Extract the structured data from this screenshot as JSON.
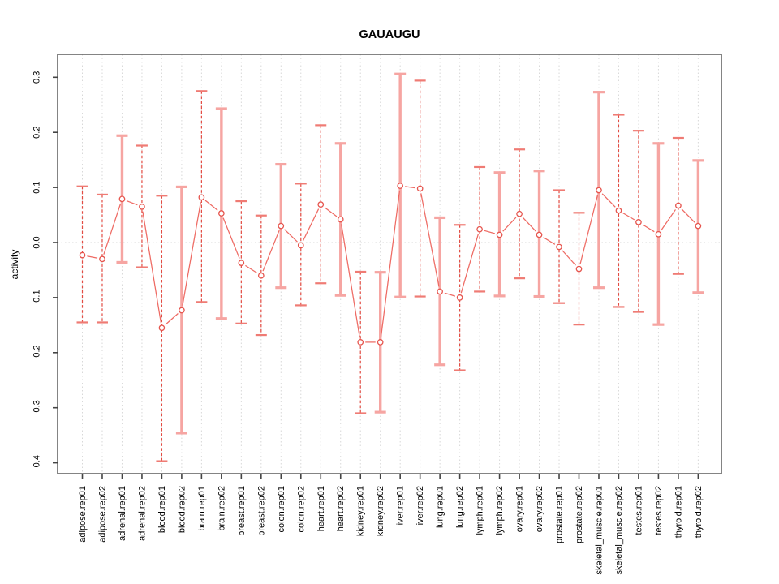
{
  "title": "GAUAUGU",
  "chart_data": {
    "type": "line",
    "title": "GAUAUGU",
    "xlabel": "",
    "ylabel": "activity",
    "ylim": [
      -0.42,
      0.34
    ],
    "ytick_values": [
      0.3,
      0.2,
      0.1,
      0.0,
      -0.1,
      -0.2,
      -0.3,
      -0.4
    ],
    "ytick_labels": [
      "0.3",
      "0.2",
      "0.1",
      "0.0",
      "-0.1",
      "-0.2",
      "-0.3",
      "-0.4"
    ],
    "grid": "dotted vertical gridline per category; dotted horizontal line at y=0",
    "legend": "none",
    "marker": "open-circle",
    "categories": [
      "adipose.rep01",
      "adipose.rep02",
      "adrenal.rep01",
      "adrenal.rep02",
      "blood.rep01",
      "blood.rep02",
      "brain.rep01",
      "brain.rep02",
      "breast.rep01",
      "breast.rep02",
      "colon.rep01",
      "colon.rep02",
      "heart.rep01",
      "heart.rep02",
      "kidney.rep01",
      "kidney.rep02",
      "liver.rep01",
      "liver.rep02",
      "lung.rep01",
      "lung.rep02",
      "lymph.rep01",
      "lymph.rep02",
      "ovary.rep01",
      "ovary.rep02",
      "prostate.rep01",
      "prostate.rep02",
      "skeletal_muscle.rep01",
      "skeletal_muscle.rep02",
      "testes.rep01",
      "testes.rep02",
      "thyroid.rep01",
      "thyroid.rep02"
    ],
    "series": [
      {
        "name": "activity",
        "values": [
          -0.023,
          -0.03,
          0.079,
          0.065,
          -0.155,
          -0.123,
          0.082,
          0.053,
          -0.037,
          -0.06,
          0.03,
          -0.005,
          0.069,
          0.042,
          -0.181,
          -0.181,
          0.103,
          0.098,
          -0.089,
          -0.1,
          0.024,
          0.014,
          0.052,
          0.014,
          -0.008,
          -0.048,
          0.095,
          0.058,
          0.037,
          0.015,
          0.067,
          0.03
        ]
      }
    ],
    "error_high": [
      0.102,
      0.087,
      0.194,
      0.176,
      0.085,
      0.101,
      0.275,
      0.243,
      0.075,
      0.049,
      0.142,
      0.107,
      0.213,
      0.18,
      -0.053,
      -0.054,
      0.306,
      0.294,
      0.045,
      0.032,
      0.137,
      0.127,
      0.169,
      0.13,
      0.095,
      0.054,
      0.273,
      0.232,
      0.203,
      0.18,
      0.19,
      0.149
    ],
    "error_low": [
      -0.145,
      -0.145,
      -0.036,
      -0.045,
      -0.397,
      -0.346,
      -0.108,
      -0.138,
      -0.147,
      -0.168,
      -0.082,
      -0.114,
      -0.074,
      -0.096,
      -0.31,
      -0.308,
      -0.099,
      -0.098,
      -0.222,
      -0.232,
      -0.089,
      -0.097,
      -0.065,
      -0.098,
      -0.11,
      -0.149,
      -0.082,
      -0.117,
      -0.126,
      -0.149,
      -0.057,
      -0.091
    ],
    "errorbar_style": [
      "dashed",
      "dashed",
      "solid",
      "dashed",
      "dashed",
      "solid",
      "dashed",
      "solid",
      "dashed",
      "dashed",
      "solid",
      "dashed",
      "dashed",
      "solid",
      "dashed",
      "solid",
      "solid",
      "dashed",
      "solid",
      "dashed",
      "dashed",
      "solid",
      "dashed",
      "solid",
      "dashed",
      "dashed",
      "solid",
      "dashed",
      "dashed",
      "solid",
      "dashed",
      "solid"
    ]
  },
  "colors": {
    "background": "#ffffff",
    "series_line": "#ee6a63",
    "marker_stroke": "#e6544d",
    "errorbar_dashed": "#e34b42",
    "errorbar_solid": "#f6a5a2",
    "cap_dashed": "#ef7b74",
    "cap_solid": "#f6a5a2",
    "gridline": "#d8d8d8",
    "zero_line": "#d8d8d8",
    "box_border": "#666666",
    "tick": "#444444",
    "text": "#000000"
  }
}
